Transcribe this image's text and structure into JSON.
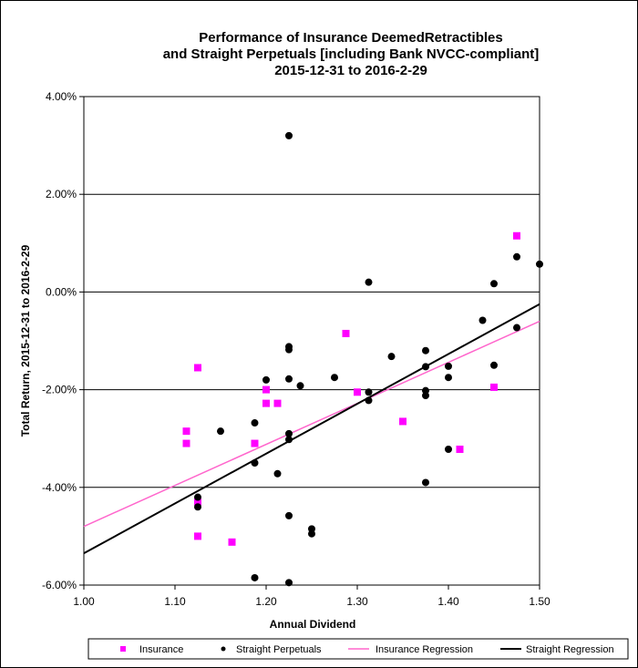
{
  "chart_data": {
    "type": "scatter",
    "title": [
      "Performance of Insurance DeemedRetractibles",
      "and Straight Perpetuals [including Bank NVCC-compliant]",
      "2015-12-31 to 2016-2-29"
    ],
    "xlabel": "Annual Dividend",
    "ylabel": "Total Return, 2015-12-31  to 2016-2-29",
    "xlim": [
      1.0,
      1.5
    ],
    "ylim": [
      -0.06,
      0.04
    ],
    "x_ticks": [
      1.0,
      1.1,
      1.2,
      1.3,
      1.4,
      1.5
    ],
    "x_tick_labels": [
      "1.00",
      "1.10",
      "1.20",
      "1.30",
      "1.40",
      "1.50"
    ],
    "y_ticks": [
      0.04,
      0.02,
      0.0,
      -0.02,
      -0.04,
      -0.06
    ],
    "y_tick_labels": [
      "4.00%",
      "2.00%",
      "0.00%",
      "-2.00%",
      "-4.00%",
      "-6.00%"
    ],
    "gridlines": [
      0.02,
      0.0,
      -0.02,
      -0.04
    ],
    "legend_position": "bottom",
    "series": [
      {
        "name": "Insurance",
        "marker": "square",
        "color": "#ff00ff",
        "points": [
          [
            1.1125,
            -0.0285
          ],
          [
            1.1125,
            -0.031
          ],
          [
            1.125,
            -0.0155
          ],
          [
            1.125,
            -0.043
          ],
          [
            1.125,
            -0.05
          ],
          [
            1.1625,
            -0.0512
          ],
          [
            1.1875,
            -0.031
          ],
          [
            1.2,
            -0.02
          ],
          [
            1.2,
            -0.0228
          ],
          [
            1.2125,
            -0.0228
          ],
          [
            1.2875,
            -0.0085
          ],
          [
            1.3,
            -0.0205
          ],
          [
            1.35,
            -0.0265
          ],
          [
            1.4125,
            -0.0322
          ],
          [
            1.45,
            -0.0195
          ],
          [
            1.475,
            0.0115
          ]
        ]
      },
      {
        "name": "Straight Perpetuals",
        "marker": "circle",
        "color": "#000000",
        "points": [
          [
            1.125,
            -0.042
          ],
          [
            1.125,
            -0.044
          ],
          [
            1.15,
            -0.0285
          ],
          [
            1.1875,
            -0.0268
          ],
          [
            1.1875,
            -0.035
          ],
          [
            1.1875,
            -0.0585
          ],
          [
            1.2,
            -0.018
          ],
          [
            1.2125,
            -0.0372
          ],
          [
            1.225,
            0.032
          ],
          [
            1.225,
            -0.0112
          ],
          [
            1.225,
            -0.0118
          ],
          [
            1.225,
            -0.0178
          ],
          [
            1.225,
            -0.029
          ],
          [
            1.225,
            -0.0302
          ],
          [
            1.225,
            -0.0458
          ],
          [
            1.225,
            -0.0595
          ],
          [
            1.2375,
            -0.0192
          ],
          [
            1.25,
            -0.0485
          ],
          [
            1.25,
            -0.0495
          ],
          [
            1.275,
            -0.0175
          ],
          [
            1.3125,
            0.002
          ],
          [
            1.3125,
            -0.0205
          ],
          [
            1.3125,
            -0.0222
          ],
          [
            1.3375,
            -0.0132
          ],
          [
            1.375,
            -0.012
          ],
          [
            1.375,
            -0.0153
          ],
          [
            1.375,
            -0.0202
          ],
          [
            1.375,
            -0.0212
          ],
          [
            1.375,
            -0.039
          ],
          [
            1.4,
            -0.0152
          ],
          [
            1.4,
            -0.0175
          ],
          [
            1.4,
            -0.0322
          ],
          [
            1.4375,
            -0.0058
          ],
          [
            1.45,
            0.0017
          ],
          [
            1.45,
            -0.015
          ],
          [
            1.475,
            0.0072
          ],
          [
            1.475,
            -0.0073
          ],
          [
            1.5,
            0.0057
          ]
        ]
      }
    ],
    "regressions": [
      {
        "name": "Insurance Regression",
        "color": "#ff66cc",
        "x": [
          1.0,
          1.5
        ],
        "y": [
          -0.048,
          -0.006
        ]
      },
      {
        "name": "Straight Regression",
        "color": "#000000",
        "x": [
          1.0,
          1.5
        ],
        "y": [
          -0.0535,
          -0.0025
        ]
      }
    ]
  }
}
